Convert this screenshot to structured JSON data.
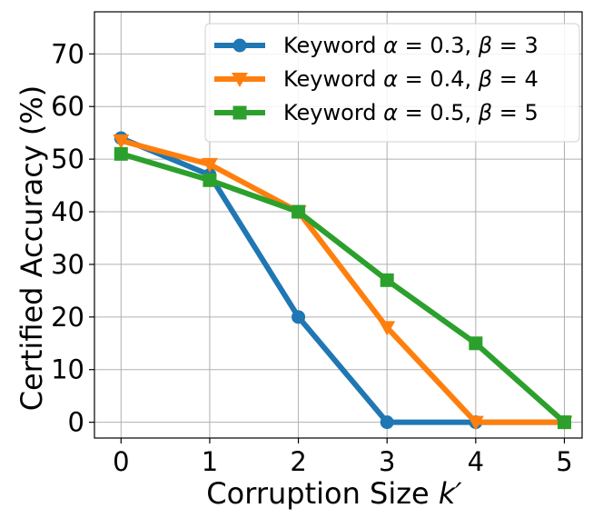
{
  "chart_data": {
    "type": "line",
    "x": [
      0,
      1,
      2,
      3,
      4,
      5
    ],
    "xticks": [
      "0",
      "1",
      "2",
      "3",
      "4",
      "5"
    ],
    "yticks": [
      "0",
      "10",
      "20",
      "30",
      "40",
      "50",
      "60",
      "70"
    ],
    "xlabel_main": "Corruption Size ",
    "xlabel_var": "k′",
    "ylabel": "Certified Accuracy (%)",
    "xlim": [
      -0.3,
      5.2
    ],
    "ylim": [
      -3,
      78
    ],
    "grid": true,
    "legend_position": "upper right",
    "series": [
      {
        "name": "Keyword α = 0.3, β = 3",
        "legend": {
          "prefix": "Keyword ",
          "a": "α",
          "a_val": " = 0.3, ",
          "b": "β",
          "b_val": " = 3"
        },
        "marker": "circle",
        "color": "#1f77b4",
        "values": [
          54,
          47,
          20,
          0,
          0,
          0
        ]
      },
      {
        "name": "Keyword α = 0.4, β = 4",
        "legend": {
          "prefix": "Keyword ",
          "a": "α",
          "a_val": " = 0.4, ",
          "b": "β",
          "b_val": " = 4"
        },
        "marker": "triangle-down",
        "color": "#ff7f0e",
        "values": [
          53.5,
          49,
          40,
          18,
          0,
          0
        ]
      },
      {
        "name": "Keyword α = 0.5, β = 5",
        "legend": {
          "prefix": "Keyword ",
          "a": "α",
          "a_val": " = 0.5, ",
          "b": "β",
          "b_val": " = 5"
        },
        "marker": "square",
        "color": "#2ca02c",
        "values": [
          51,
          46,
          40,
          27,
          15,
          0
        ]
      }
    ]
  }
}
